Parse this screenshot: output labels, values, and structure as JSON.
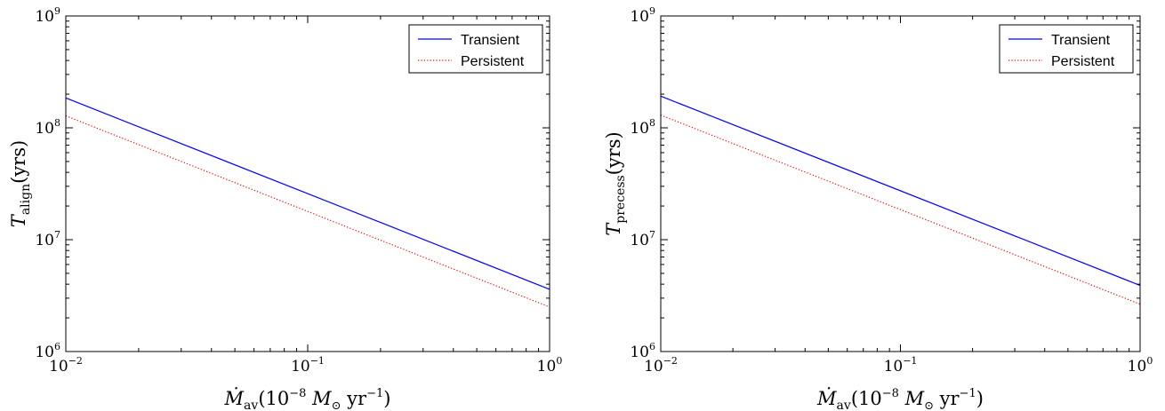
{
  "chart_data": [
    {
      "type": "line",
      "xscale": "log",
      "yscale": "log",
      "xlim": [
        0.01,
        1
      ],
      "ylim": [
        1000000,
        1000000000
      ],
      "x_ticks": [
        {
          "base": "10",
          "exp": "−2"
        },
        {
          "base": "10",
          "exp": "−1"
        },
        {
          "base": "10",
          "exp": "0"
        }
      ],
      "y_ticks": [
        {
          "base": "10",
          "exp": "6"
        },
        {
          "base": "10",
          "exp": "7"
        },
        {
          "base": "10",
          "exp": "8"
        },
        {
          "base": "10",
          "exp": "9"
        }
      ],
      "xlabel": {
        "main": "Ṁ",
        "sub": "av",
        "rest": "(10",
        "sup": "−8",
        "units": " M",
        "sun_sub": "⊙",
        "yr": " yr",
        "yr_sup": "−1",
        "close": ")"
      },
      "ylabel": {
        "main": "T",
        "sub": "align",
        "rest": "(yrs)"
      },
      "legend_position": "top-right",
      "series": [
        {
          "name": "Transient",
          "style": "solid",
          "color": "#0000ff",
          "x": [
            0.01,
            1
          ],
          "y": [
            185000000,
            3600000
          ]
        },
        {
          "name": "Persistent",
          "style": "dotted",
          "color": "#ff0000",
          "x": [
            0.01,
            1
          ],
          "y": [
            128000000,
            2500000
          ]
        }
      ]
    },
    {
      "type": "line",
      "xscale": "log",
      "yscale": "log",
      "xlim": [
        0.01,
        1
      ],
      "ylim": [
        1000000,
        1000000000
      ],
      "x_ticks": [
        {
          "base": "10",
          "exp": "−2"
        },
        {
          "base": "10",
          "exp": "−1"
        },
        {
          "base": "10",
          "exp": "0"
        }
      ],
      "y_ticks": [
        {
          "base": "10",
          "exp": "6"
        },
        {
          "base": "10",
          "exp": "7"
        },
        {
          "base": "10",
          "exp": "8"
        },
        {
          "base": "10",
          "exp": "9"
        }
      ],
      "xlabel": {
        "main": "Ṁ",
        "sub": "av",
        "rest": "(10",
        "sup": "−8",
        "units": " M",
        "sun_sub": "⊙",
        "yr": " yr",
        "yr_sup": "−1",
        "close": ")"
      },
      "ylabel": {
        "main": "T",
        "sub": "precess",
        "rest": "(yrs)"
      },
      "legend_position": "top-right",
      "series": [
        {
          "name": "Transient",
          "style": "solid",
          "color": "#0000ff",
          "x": [
            0.01,
            1
          ],
          "y": [
            192000000,
            3900000
          ]
        },
        {
          "name": "Persistent",
          "style": "dotted",
          "color": "#ff0000",
          "x": [
            0.01,
            1
          ],
          "y": [
            130000000,
            2650000
          ]
        }
      ]
    }
  ]
}
